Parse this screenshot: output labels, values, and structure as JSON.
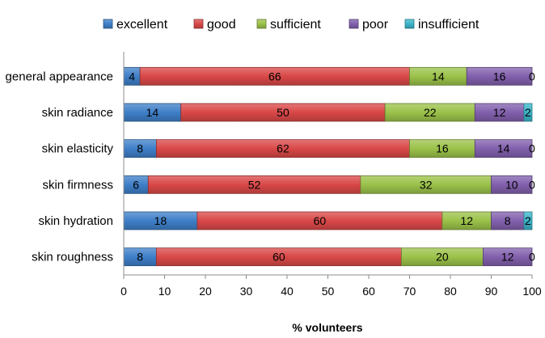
{
  "chart_data": {
    "type": "bar",
    "orientation": "horizontal",
    "stacked": true,
    "categories": [
      "general appearance",
      "skin radiance",
      "skin elasticity",
      "skin firmness",
      "skin hydration",
      "skin roughness"
    ],
    "series": [
      {
        "name": "excellent",
        "color": "#3f7fc8",
        "values": [
          4,
          14,
          8,
          6,
          18,
          8
        ]
      },
      {
        "name": "good",
        "color": "#d94848",
        "values": [
          66,
          50,
          62,
          52,
          60,
          60
        ]
      },
      {
        "name": "sufficient",
        "color": "#9bc24a",
        "values": [
          14,
          22,
          16,
          32,
          12,
          20
        ]
      },
      {
        "name": "poor",
        "color": "#8260ad",
        "values": [
          16,
          12,
          14,
          10,
          8,
          12
        ]
      },
      {
        "name": "insufficient",
        "color": "#3bb5c9",
        "values": [
          0,
          2,
          0,
          0,
          2,
          0
        ]
      }
    ],
    "xlabel": "% volunteers",
    "ylabel": "",
    "xlim": [
      0,
      100
    ],
    "xticks": [
      0,
      10,
      20,
      30,
      40,
      50,
      60,
      70,
      80,
      90,
      100
    ],
    "grid": false,
    "legend_position": "top"
  }
}
